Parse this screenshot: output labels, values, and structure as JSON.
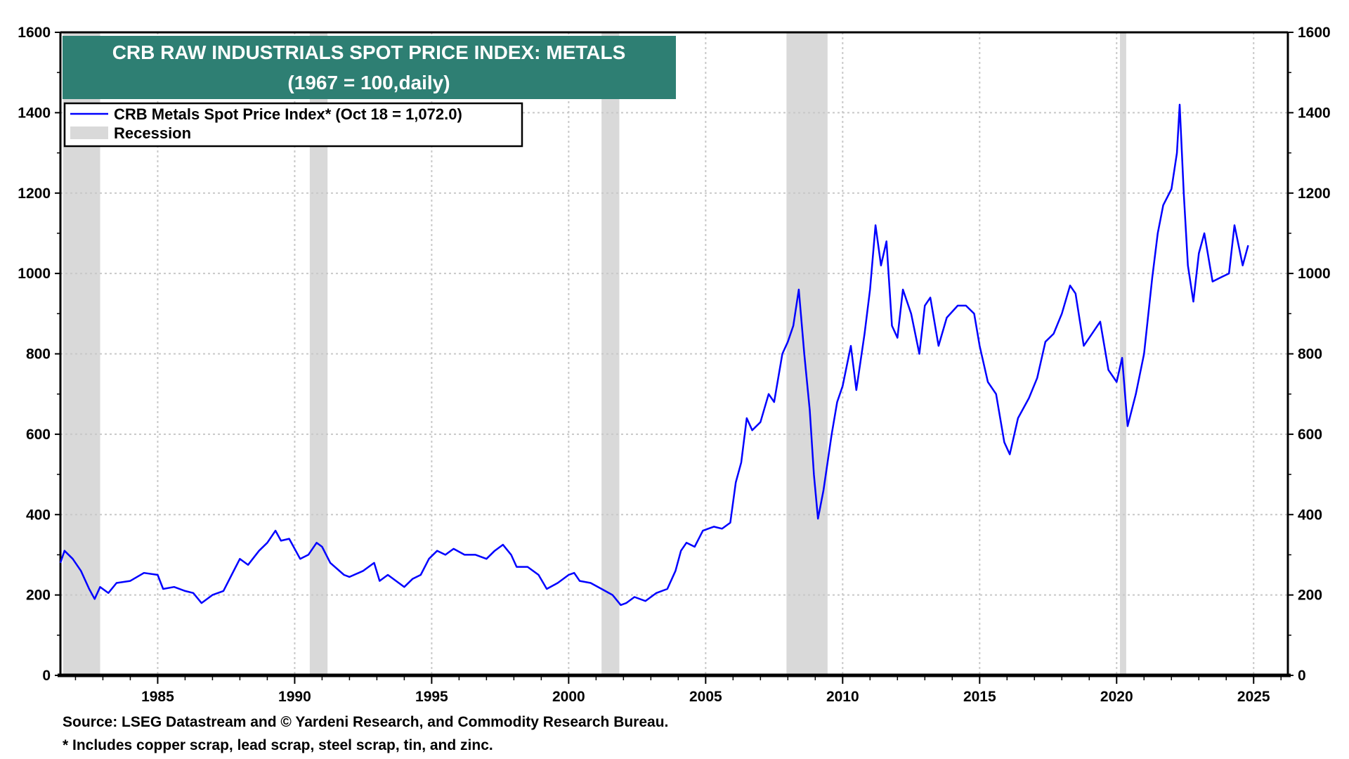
{
  "chart_data": {
    "type": "line",
    "title": "CRB RAW INDUSTRIALS SPOT PRICE INDEX: METALS",
    "subtitle": "(1967 = 100,daily)",
    "xlabel": "",
    "ylabel": "",
    "xlim": [
      1981.45,
      2026.25
    ],
    "ylim": [
      0,
      1600
    ],
    "y_ticks": [
      "0",
      "200",
      "400",
      "600",
      "800",
      "1000",
      "1200",
      "1400",
      "1600"
    ],
    "x_ticks": [
      "1985",
      "1990",
      "1995",
      "2000",
      "2005",
      "2010",
      "2015",
      "2020",
      "2025"
    ],
    "grid": true,
    "legend_position": "top-left",
    "colors": {
      "series": "#0000ff",
      "recession": "#d9d9d9",
      "title_bg": "#2e7f73"
    },
    "legend": {
      "series_label": "CRB Metals Spot Price Index* (Oct 18 = 1,072.0)",
      "recession_label": "Recession"
    },
    "recessions": [
      [
        1981.55,
        1982.9
      ],
      [
        1990.55,
        1991.2
      ],
      [
        2001.2,
        2001.85
      ],
      [
        2007.95,
        2009.45
      ],
      [
        2020.12,
        2020.35
      ]
    ],
    "series": [
      {
        "name": "CRB Metals Spot Price Index*",
        "x": [
          1981.45,
          1981.6,
          1981.9,
          1982.2,
          1982.5,
          1982.7,
          1982.9,
          1983.2,
          1983.5,
          1984.0,
          1984.5,
          1985.0,
          1985.2,
          1985.6,
          1986.0,
          1986.3,
          1986.6,
          1987.0,
          1987.4,
          1987.7,
          1988.0,
          1988.3,
          1988.7,
          1989.0,
          1989.3,
          1989.5,
          1989.8,
          1990.2,
          1990.5,
          1990.8,
          1991.0,
          1991.3,
          1991.8,
          1992.0,
          1992.5,
          1992.9,
          1993.1,
          1993.4,
          1993.8,
          1994.0,
          1994.3,
          1994.6,
          1994.9,
          1995.2,
          1995.5,
          1995.8,
          1996.2,
          1996.6,
          1997.0,
          1997.3,
          1997.6,
          1997.9,
          1998.1,
          1998.5,
          1998.9,
          1999.2,
          1999.6,
          2000.0,
          2000.2,
          2000.4,
          2000.8,
          2001.2,
          2001.6,
          2001.9,
          2002.1,
          2002.4,
          2002.8,
          2003.2,
          2003.6,
          2003.9,
          2004.1,
          2004.3,
          2004.6,
          2004.9,
          2005.3,
          2005.6,
          2005.9,
          2006.1,
          2006.3,
          2006.5,
          2006.7,
          2007.0,
          2007.3,
          2007.5,
          2007.8,
          2008.0,
          2008.2,
          2008.4,
          2008.6,
          2008.8,
          2008.95,
          2009.1,
          2009.3,
          2009.6,
          2009.8,
          2010.0,
          2010.3,
          2010.5,
          2010.8,
          2011.0,
          2011.2,
          2011.4,
          2011.6,
          2011.8,
          2012.0,
          2012.2,
          2012.5,
          2012.8,
          2013.0,
          2013.2,
          2013.5,
          2013.8,
          2014.2,
          2014.5,
          2014.8,
          2015.0,
          2015.3,
          2015.6,
          2015.9,
          2016.1,
          2016.4,
          2016.8,
          2017.1,
          2017.4,
          2017.7,
          2018.0,
          2018.3,
          2018.5,
          2018.8,
          2019.1,
          2019.4,
          2019.7,
          2020.0,
          2020.2,
          2020.4,
          2020.7,
          2021.0,
          2021.3,
          2021.5,
          2021.7,
          2022.0,
          2022.2,
          2022.3,
          2022.45,
          2022.6,
          2022.8,
          2023.0,
          2023.2,
          2023.5,
          2023.8,
          2024.1,
          2024.3,
          2024.6,
          2024.8
        ],
        "values": [
          280,
          310,
          290,
          260,
          215,
          190,
          220,
          205,
          230,
          235,
          255,
          250,
          215,
          220,
          210,
          205,
          180,
          200,
          210,
          250,
          290,
          275,
          310,
          330,
          360,
          335,
          340,
          290,
          300,
          330,
          320,
          280,
          250,
          245,
          260,
          280,
          235,
          250,
          230,
          220,
          240,
          250,
          290,
          310,
          300,
          315,
          300,
          300,
          290,
          310,
          325,
          300,
          270,
          270,
          250,
          215,
          230,
          250,
          255,
          235,
          230,
          215,
          200,
          175,
          180,
          195,
          185,
          205,
          215,
          260,
          310,
          330,
          320,
          360,
          370,
          365,
          380,
          480,
          530,
          640,
          610,
          630,
          700,
          680,
          800,
          830,
          870,
          960,
          800,
          660,
          500,
          390,
          460,
          600,
          680,
          720,
          820,
          710,
          850,
          960,
          1120,
          1020,
          1080,
          870,
          840,
          960,
          900,
          800,
          920,
          940,
          820,
          890,
          920,
          920,
          900,
          820,
          730,
          700,
          580,
          550,
          640,
          690,
          740,
          830,
          850,
          900,
          970,
          950,
          820,
          850,
          880,
          760,
          730,
          790,
          620,
          700,
          800,
          990,
          1100,
          1170,
          1210,
          1300,
          1420,
          1200,
          1020,
          930,
          1050,
          1100,
          980,
          990,
          1000,
          1120,
          1020,
          1070
        ]
      }
    ]
  },
  "footer": {
    "source": "Source: LSEG Datastream and © Yardeni Research, and Commodity Research Bureau.",
    "note": "* Includes copper scrap, lead scrap, steel scrap, tin, and zinc."
  }
}
